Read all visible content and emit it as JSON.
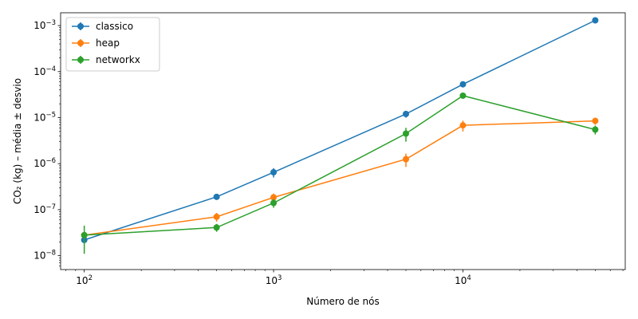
{
  "chart_data": {
    "type": "line",
    "xlabel": "Número de nós",
    "ylabel": "CO₂ (kg) – média ± desvio",
    "xscale": "log",
    "yscale": "log",
    "xlim": [
      75,
      72000
    ],
    "ylim": [
      5e-09,
      0.0019
    ],
    "grid": false,
    "legend_position": "top-left",
    "x_ticks": [
      {
        "value": 100,
        "base": "10",
        "exp": "2"
      },
      {
        "value": 1000,
        "base": "10",
        "exp": "3"
      },
      {
        "value": 10000,
        "base": "10",
        "exp": "4"
      }
    ],
    "y_ticks": [
      {
        "value": 1e-08,
        "base": "10",
        "exp": "−8"
      },
      {
        "value": 1e-07,
        "base": "10",
        "exp": "−7"
      },
      {
        "value": 1e-06,
        "base": "10",
        "exp": "−6"
      },
      {
        "value": 1e-05,
        "base": "10",
        "exp": "−5"
      },
      {
        "value": 0.0001,
        "base": "10",
        "exp": "−4"
      },
      {
        "value": 0.001,
        "base": "10",
        "exp": "−3"
      }
    ],
    "x": [
      100,
      500,
      1000,
      5000,
      10000,
      50000
    ],
    "series": [
      {
        "name": "classico",
        "color": "#1f77b4",
        "values": [
          2.2e-08,
          1.9e-07,
          6.5e-07,
          1.2e-05,
          5.3e-05,
          0.0013
        ],
        "errors": [
          3e-09,
          2e-08,
          1.5e-07,
          2e-06,
          5e-06,
          0.0001
        ]
      },
      {
        "name": "heap",
        "color": "#ff7f0e",
        "values": [
          2.8e-08,
          7e-08,
          1.85e-07,
          1.25e-06,
          6.8e-06,
          8.5e-06
        ],
        "errors": [
          4e-09,
          1.5e-08,
          4e-08,
          4e-07,
          1.8e-06,
          1.5e-06
        ]
      },
      {
        "name": "networkx",
        "color": "#2ca02c",
        "values": [
          2.8e-08,
          4.1e-08,
          1.4e-07,
          4.5e-06,
          3e-05,
          5.5e-06
        ],
        "errors": [
          1.7e-08,
          8e-09,
          3e-08,
          1.5e-06,
          2e-06,
          1.2e-06
        ]
      }
    ]
  }
}
